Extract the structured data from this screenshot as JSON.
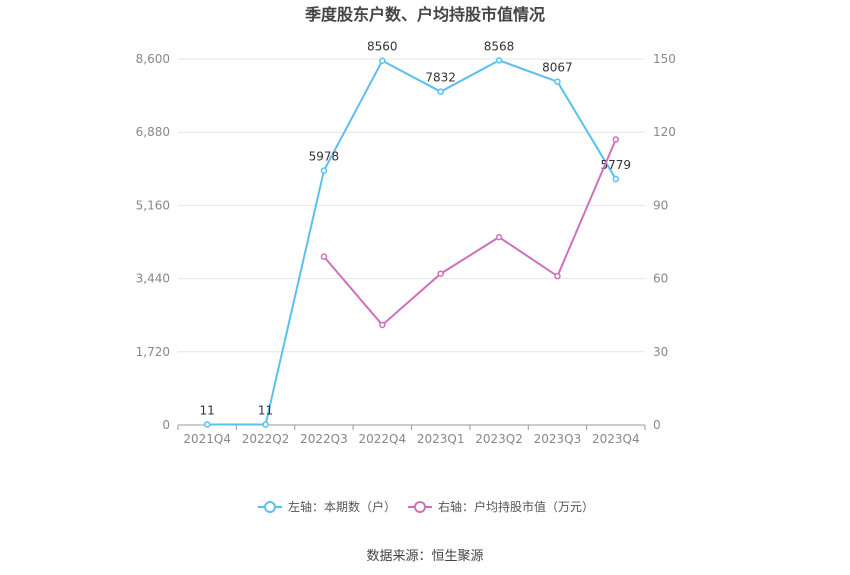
{
  "chart_data": {
    "type": "line",
    "title": "季度股东户数、户均持股市值情况",
    "categories": [
      "2021Q4",
      "2022Q2",
      "2022Q3",
      "2022Q4",
      "2023Q1",
      "2023Q2",
      "2023Q3",
      "2023Q4"
    ],
    "left_axis": {
      "ticks": [
        "0",
        "1,720",
        "3,440",
        "5,160",
        "6,880",
        "8,600"
      ],
      "ylim": [
        0,
        8600
      ]
    },
    "right_axis": {
      "ticks": [
        "0",
        "30",
        "60",
        "90",
        "120",
        "150"
      ],
      "ylim": [
        0,
        150
      ]
    },
    "series": [
      {
        "name": "左轴：本期数（户）",
        "axis": "left",
        "color": "#5bc0f0",
        "values": [
          11,
          11,
          5978,
          8560,
          7832,
          8568,
          8067,
          5779
        ],
        "labels": [
          "11",
          "11",
          "5978",
          "8560",
          "7832",
          "8568",
          "8067",
          "5779"
        ]
      },
      {
        "name": "右轴：户均持股市值（万元）",
        "axis": "right",
        "color": "#d070b8",
        "values": [
          null,
          null,
          69,
          41,
          62,
          77,
          61,
          117
        ]
      }
    ],
    "grid": true,
    "legend": "bottom-center"
  },
  "source": "数据来源：恒生聚源"
}
